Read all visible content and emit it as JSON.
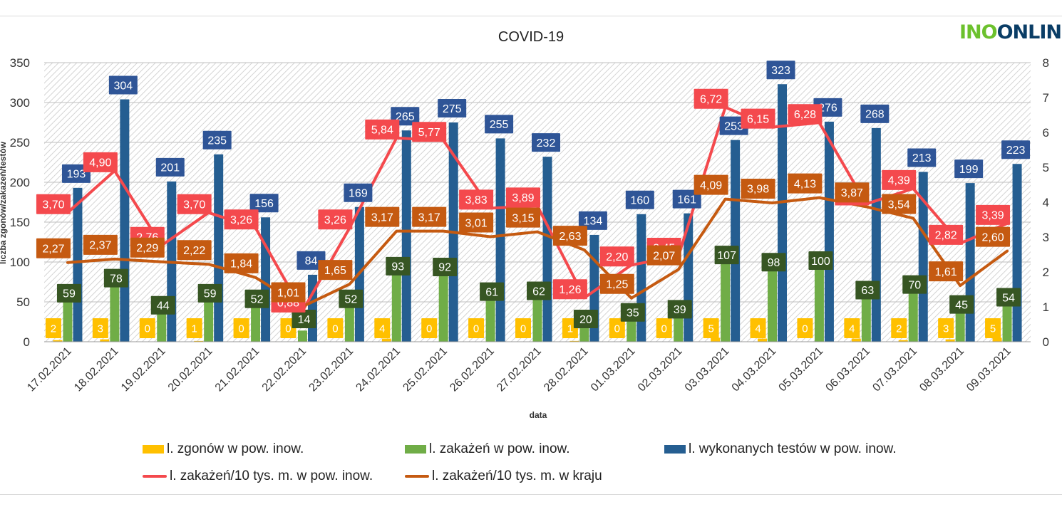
{
  "logo": {
    "part1": "INO",
    "part2": "ONLIN"
  },
  "chart_data": {
    "type": "bar",
    "title": "COVID-19",
    "xlabel": "data",
    "ylabel": "liczba zgonów/zakażeń/testów",
    "ylim": [
      0,
      350
    ],
    "y2lim": [
      0,
      8
    ],
    "yticks": [
      "0",
      "50",
      "100",
      "150",
      "200",
      "250",
      "300",
      "350"
    ],
    "y2ticks": [
      "0",
      "1",
      "2",
      "3",
      "4",
      "5",
      "6",
      "7",
      "8"
    ],
    "grid": true,
    "legend_position": "bottom",
    "categories": [
      "17.02.2021",
      "18.02.2021",
      "19.02.2021",
      "20.02.2021",
      "21.02.2021",
      "22.02.2021",
      "23.02.2021",
      "24.02.2021",
      "25.02.2021",
      "26.02.2021",
      "27.02.2021",
      "28.02.2021",
      "01.03.2021",
      "02.03.2021",
      "03.03.2021",
      "04.03.2021",
      "05.03.2021",
      "06.03.2021",
      "07.03.2021",
      "08.03.2021",
      "09.03.2021"
    ],
    "series": [
      {
        "name": "l. zgonów w pow. inow.",
        "type": "bar",
        "axis": "left",
        "color": "#ffc000",
        "values": [
          2,
          3,
          0,
          1,
          0,
          0,
          0,
          4,
          0,
          0,
          0,
          1,
          0,
          0,
          5,
          4,
          0,
          4,
          2,
          3,
          5
        ],
        "labels": [
          "2",
          "3",
          "0",
          "1",
          "0",
          "0",
          "0",
          "4",
          "0",
          "0",
          "0",
          "1",
          "0",
          "0",
          "5",
          "4",
          "0",
          "4",
          "2",
          "3",
          "5"
        ]
      },
      {
        "name": "l. zakażeń w pow. inow.",
        "type": "bar",
        "axis": "left",
        "color": "#70ad47",
        "values": [
          59,
          78,
          44,
          59,
          52,
          14,
          52,
          93,
          92,
          61,
          62,
          20,
          35,
          39,
          107,
          98,
          100,
          63,
          70,
          45,
          54
        ],
        "labels": [
          "59",
          "78",
          "44",
          "59",
          "52",
          "14",
          "52",
          "93",
          "92",
          "61",
          "62",
          "20",
          "35",
          "39",
          "107",
          "98",
          "100",
          "63",
          "70",
          "45",
          "54"
        ]
      },
      {
        "name": "l. wykonanych testów w pow. inow.",
        "type": "bar",
        "axis": "left",
        "color": "#255e91",
        "values": [
          193,
          304,
          201,
          235,
          156,
          84,
          169,
          265,
          275,
          255,
          232,
          134,
          160,
          161,
          253,
          323,
          276,
          268,
          213,
          199,
          223
        ],
        "labels": [
          "193",
          "304",
          "201",
          "235",
          "156",
          "84",
          "169",
          "265",
          "275",
          "255",
          "232",
          "134",
          "160",
          "161",
          "253",
          "323",
          "276",
          "268",
          "213",
          "199",
          "223"
        ]
      },
      {
        "name": "l. zakażeń/10 tys. m. w pow. inow.",
        "type": "line",
        "axis": "right",
        "color": "#f4494d",
        "values": [
          3.7,
          4.9,
          2.76,
          3.7,
          3.26,
          0.88,
          3.26,
          5.84,
          5.77,
          3.83,
          3.89,
          1.26,
          2.2,
          2.45,
          6.72,
          6.15,
          6.28,
          3.95,
          4.39,
          2.82,
          3.39
        ],
        "labels": [
          "3,70",
          "4,90",
          "2,76",
          "3,70",
          "3,26",
          "0,88",
          "3,26",
          "5,84",
          "5,77",
          "3,83",
          "3,89",
          "1,26",
          "2,20",
          "2,45",
          "6,72",
          "6,15",
          "6,28",
          "3,95",
          "4,39",
          "2,82",
          "3,39"
        ]
      },
      {
        "name": "l. zakażeń/10 tys. m. w kraju",
        "type": "line",
        "axis": "right",
        "color": "#c55a11",
        "values": [
          2.27,
          2.37,
          2.29,
          2.22,
          1.84,
          1.01,
          1.65,
          3.17,
          3.17,
          3.01,
          3.15,
          2.63,
          1.25,
          2.07,
          4.09,
          3.98,
          4.13,
          3.87,
          3.54,
          1.61,
          2.6
        ],
        "labels": [
          "2,27",
          "2,37",
          "2,29",
          "2,22",
          "1,84",
          "1,01",
          "1,65",
          "3,17",
          "3,17",
          "3,01",
          "3,15",
          "2,63",
          "1,25",
          "2,07",
          "4,09",
          "3,98",
          "4,13",
          "3,87",
          "3,54",
          "1,61",
          "2,60"
        ]
      }
    ]
  }
}
